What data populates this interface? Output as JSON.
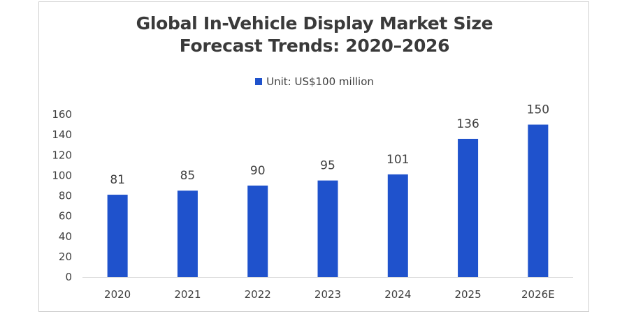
{
  "chart_data": {
    "type": "bar",
    "title_lines": [
      "Global In-Vehicle Display Market Size",
      "Forecast Trends: 2020–2026"
    ],
    "legend": [
      {
        "name": "Unit: US$100 million",
        "color": "#1f52cc"
      }
    ],
    "legend_position": "top-center",
    "categories": [
      "2020",
      "2021",
      "2022",
      "2023",
      "2024",
      "2025",
      "2026E"
    ],
    "series": [
      {
        "name": "Unit: US$100 million",
        "values": [
          81,
          85,
          90,
          95,
          101,
          136,
          150
        ],
        "color": "#1f52cc"
      }
    ],
    "data_labels": [
      "81",
      "85",
      "90",
      "95",
      "101",
      "136",
      "150"
    ],
    "yticks": [
      0,
      20,
      40,
      60,
      80,
      100,
      120,
      140,
      160
    ],
    "ylim": [
      0,
      160
    ],
    "xlabel": "",
    "ylabel": "",
    "grid": false
  }
}
